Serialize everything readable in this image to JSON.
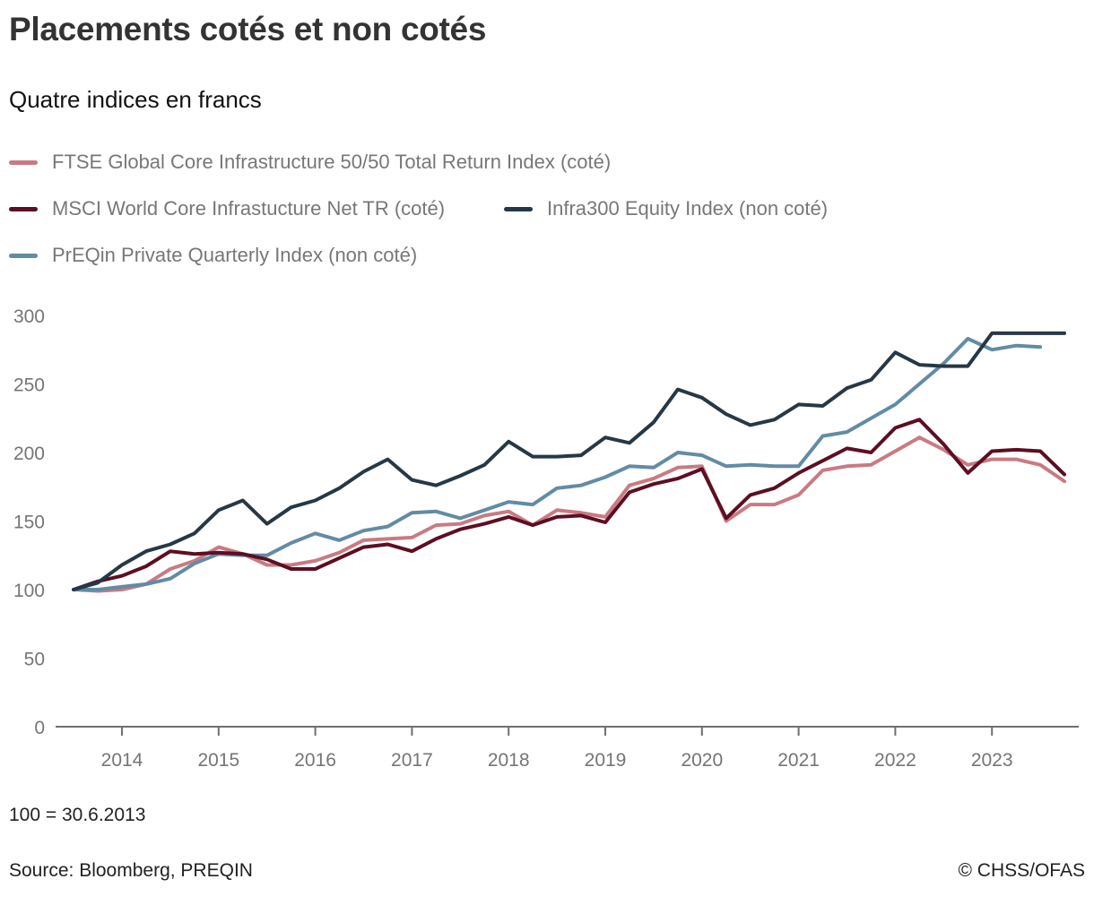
{
  "header": {
    "title": "Placements cotés et non cotés",
    "subtitle": "Quatre indices en francs"
  },
  "footer": {
    "note": "100 = 30.6.2013",
    "source": "Source: Bloomberg, PREQIN",
    "credit": "© CHSS/OFAS"
  },
  "chart_data": {
    "type": "line",
    "title": "Placements cotés et non cotés",
    "subtitle": "Quatre indices en francs",
    "xlabel": "",
    "ylabel": "",
    "ylim": [
      0,
      300
    ],
    "yticks": [
      "0",
      "50",
      "100",
      "150",
      "200",
      "250",
      "300"
    ],
    "ytick_values": [
      0,
      50,
      100,
      150,
      200,
      250,
      300
    ],
    "xticks": [
      "2014",
      "2015",
      "2016",
      "2017",
      "2018",
      "2019",
      "2020",
      "2021",
      "2022",
      "2023"
    ],
    "xtick_values": [
      2014,
      2015,
      2016,
      2017,
      2018,
      2019,
      2020,
      2021,
      2022,
      2023
    ],
    "xlim": [
      2013.25,
      2024.0
    ],
    "grid": false,
    "legend_position": "top-left",
    "x_start": 2013.5,
    "x_step": 0.25,
    "series": [
      {
        "name": "FTSE Global Core Infrastructure 50/50 Total Return Index (coté)",
        "color": "#c97a82",
        "values": [
          100,
          99,
          100,
          104,
          115,
          121,
          131,
          126,
          118,
          118,
          121,
          127,
          136,
          137,
          138,
          147,
          148,
          154,
          157,
          147,
          158,
          156,
          153,
          176,
          181,
          189,
          190,
          150,
          162,
          162,
          169,
          187,
          190,
          191,
          201,
          211,
          202,
          191,
          195,
          195,
          191,
          179
        ]
      },
      {
        "name": "MSCI World Core Infrastucture Net TR (coté)",
        "color": "#5c0f22",
        "values": [
          100,
          106,
          110,
          117,
          128,
          126,
          127,
          126,
          122,
          115,
          115,
          123,
          131,
          133,
          128,
          137,
          144,
          148,
          153,
          147,
          153,
          154,
          149,
          171,
          177,
          181,
          188,
          152,
          169,
          174,
          185,
          194,
          203,
          200,
          218,
          224,
          206,
          185,
          201,
          202,
          201,
          184
        ]
      },
      {
        "name": "Infra300 Equity Index (non coté)",
        "color": "#263846",
        "values": [
          100,
          105,
          118,
          128,
          133,
          141,
          158,
          165,
          148,
          160,
          165,
          174,
          186,
          195,
          180,
          176,
          183,
          191,
          208,
          197,
          197,
          198,
          211,
          207,
          222,
          246,
          240,
          228,
          220,
          224,
          235,
          234,
          247,
          253,
          273,
          264,
          263,
          263,
          287,
          287,
          287,
          287
        ]
      },
      {
        "name": "PrEQin Private Quarterly Index (non coté)",
        "color": "#628ba5",
        "values": [
          100,
          100,
          102,
          104,
          108,
          119,
          126,
          125,
          125,
          134,
          141,
          136,
          143,
          146,
          156,
          157,
          152,
          158,
          164,
          162,
          174,
          176,
          182,
          190,
          189,
          200,
          198,
          190,
          191,
          190,
          190,
          212,
          215,
          225,
          235,
          250,
          265,
          283,
          275,
          278,
          277
        ]
      }
    ]
  }
}
